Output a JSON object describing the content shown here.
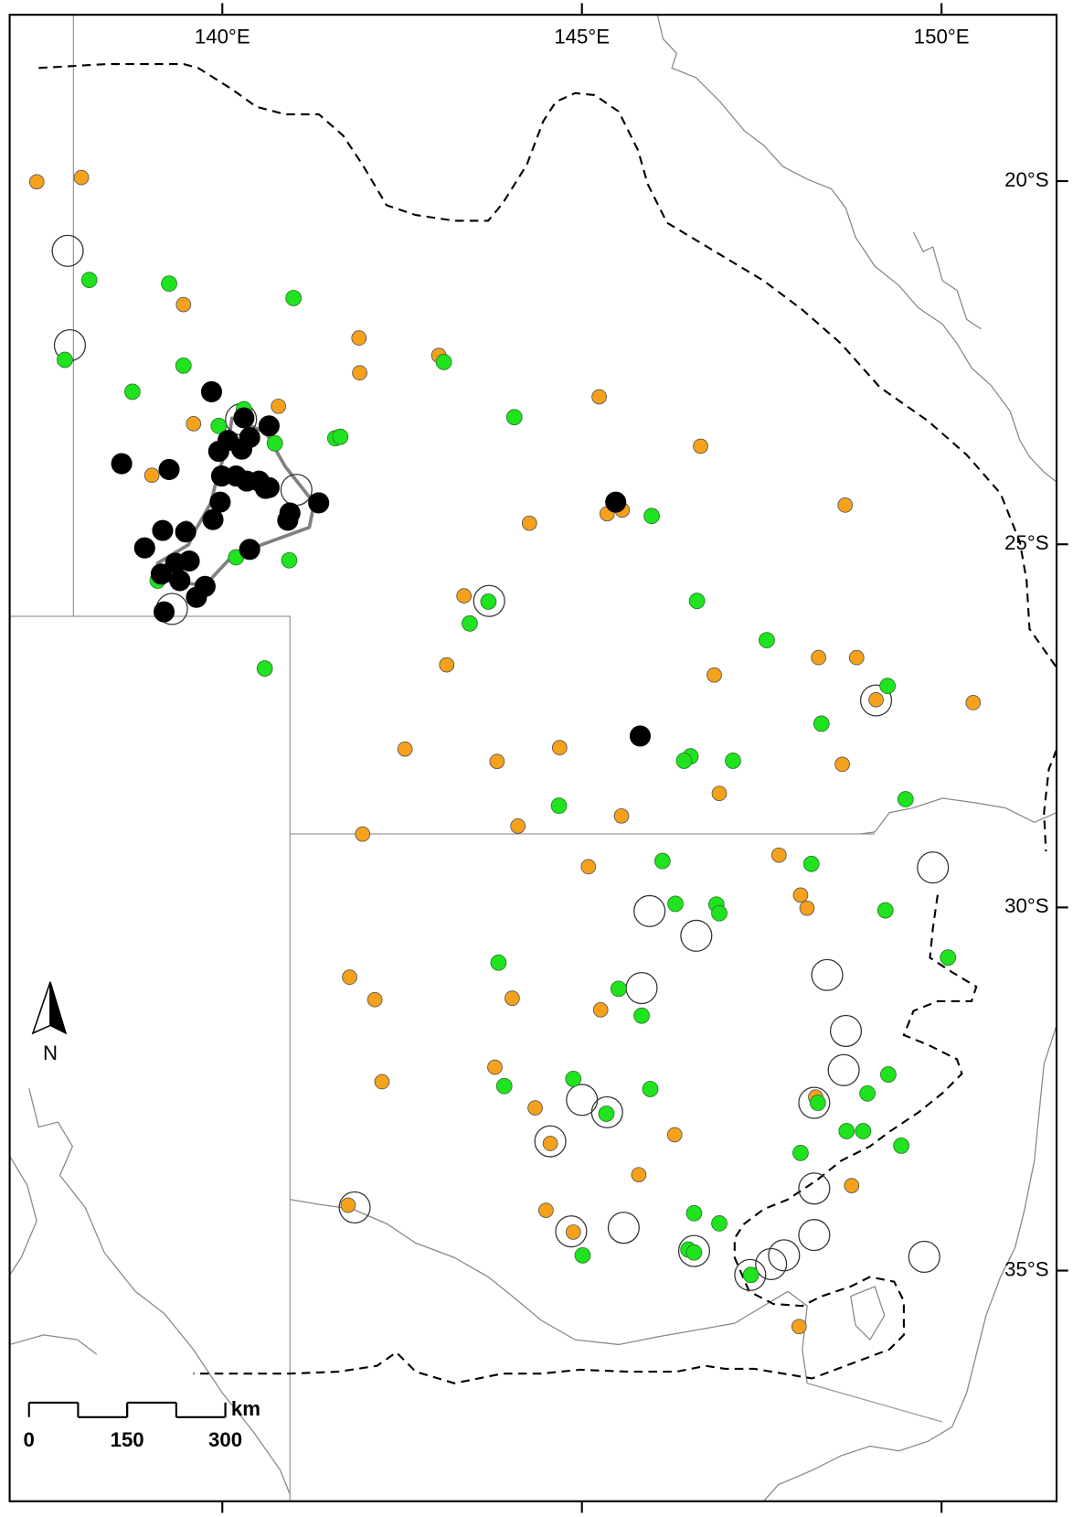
{
  "map": {
    "lon_ticks": [
      {
        "value": 140,
        "label": "140°E"
      },
      {
        "value": 145,
        "label": "145°E"
      },
      {
        "value": 150,
        "label": "150°E"
      }
    ],
    "lat_ticks": [
      {
        "value": 20,
        "label": "20°S"
      },
      {
        "value": 25,
        "label": "25°S"
      },
      {
        "value": 30,
        "label": "30°S"
      },
      {
        "value": 35,
        "label": "35°S"
      }
    ],
    "north_label": "N",
    "scale_bar": {
      "unit": "km",
      "ticks": [
        0,
        150,
        300
      ]
    },
    "points": {
      "orange": {
        "color": "#f5a11c",
        "coords": [
          [
            137.42,
            20.01
          ],
          [
            138.04,
            19.95
          ],
          [
            139.46,
            21.7
          ],
          [
            141.9,
            22.16
          ],
          [
            141.91,
            22.64
          ],
          [
            143.01,
            22.4
          ],
          [
            140.78,
            23.1
          ],
          [
            139.6,
            23.34
          ],
          [
            139.02,
            24.05
          ],
          [
            145.24,
            22.97
          ],
          [
            146.65,
            23.65
          ],
          [
            148.66,
            24.46
          ],
          [
            144.27,
            24.71
          ],
          [
            145.35,
            24.58
          ],
          [
            145.56,
            24.53
          ],
          [
            139.5,
            24.78
          ],
          [
            143.36,
            25.71
          ],
          [
            143.12,
            26.66
          ],
          [
            146.84,
            26.8
          ],
          [
            148.29,
            26.56
          ],
          [
            148.82,
            26.56
          ],
          [
            149.09,
            27.14
          ],
          [
            150.44,
            27.18
          ],
          [
            142.54,
            27.82
          ],
          [
            143.82,
            27.99
          ],
          [
            144.69,
            27.8
          ],
          [
            148.62,
            28.03
          ],
          [
            146.91,
            28.43
          ],
          [
            141.95,
            28.99
          ],
          [
            144.11,
            28.88
          ],
          [
            145.55,
            28.74
          ],
          [
            145.09,
            29.44
          ],
          [
            147.74,
            29.28
          ],
          [
            148.04,
            29.83
          ],
          [
            148.13,
            30.01
          ],
          [
            141.77,
            30.96
          ],
          [
            142.12,
            31.27
          ],
          [
            144.03,
            31.25
          ],
          [
            145.26,
            31.41
          ],
          [
            143.79,
            32.2
          ],
          [
            142.22,
            32.4
          ],
          [
            144.35,
            32.76
          ],
          [
            146.29,
            33.13
          ],
          [
            144.56,
            33.25
          ],
          [
            145.79,
            33.68
          ],
          [
            148.75,
            33.83
          ],
          [
            148.25,
            32.61
          ],
          [
            144.5,
            34.17
          ],
          [
            144.88,
            34.47
          ],
          [
            141.75,
            34.1
          ],
          [
            148.02,
            35.77
          ]
        ]
      },
      "green": {
        "color": "#1fe31f",
        "coords": [
          [
            138.15,
            21.36
          ],
          [
            139.26,
            21.41
          ],
          [
            140.99,
            21.61
          ],
          [
            137.81,
            22.46
          ],
          [
            139.46,
            22.54
          ],
          [
            143.08,
            22.49
          ],
          [
            138.75,
            22.9
          ],
          [
            140.3,
            23.14
          ],
          [
            139.95,
            23.37
          ],
          [
            140.73,
            23.61
          ],
          [
            141.57,
            23.54
          ],
          [
            141.64,
            23.52
          ],
          [
            144.06,
            23.25
          ],
          [
            145.97,
            24.61
          ],
          [
            140.19,
            25.18
          ],
          [
            140.93,
            25.22
          ],
          [
            139.1,
            25.5
          ],
          [
            143.7,
            25.79
          ],
          [
            143.44,
            26.09
          ],
          [
            146.6,
            25.78
          ],
          [
            147.57,
            26.32
          ],
          [
            140.59,
            26.71
          ],
          [
            149.25,
            26.95
          ],
          [
            148.33,
            27.47
          ],
          [
            146.51,
            27.92
          ],
          [
            146.42,
            27.98
          ],
          [
            147.1,
            27.98
          ],
          [
            144.68,
            28.6
          ],
          [
            149.5,
            28.51
          ],
          [
            146.12,
            29.36
          ],
          [
            148.19,
            29.4
          ],
          [
            146.3,
            29.95
          ],
          [
            146.87,
            29.96
          ],
          [
            146.91,
            30.08
          ],
          [
            149.22,
            30.04
          ],
          [
            150.09,
            30.69
          ],
          [
            143.84,
            30.76
          ],
          [
            145.51,
            31.12
          ],
          [
            145.83,
            31.49
          ],
          [
            144.88,
            32.36
          ],
          [
            143.92,
            32.46
          ],
          [
            145.34,
            32.84
          ],
          [
            145.95,
            32.5
          ],
          [
            149.26,
            32.3
          ],
          [
            148.97,
            32.56
          ],
          [
            148.28,
            32.69
          ],
          [
            148.68,
            33.08
          ],
          [
            148.91,
            33.08
          ],
          [
            149.44,
            33.28
          ],
          [
            148.04,
            33.38
          ],
          [
            146.56,
            34.21
          ],
          [
            146.91,
            34.35
          ],
          [
            146.48,
            34.71
          ],
          [
            146.56,
            34.75
          ],
          [
            145.01,
            34.79
          ],
          [
            147.35,
            35.06
          ]
        ]
      },
      "black": {
        "color": "#000000",
        "coords": [
          [
            139.85,
            22.9
          ],
          [
            140.3,
            23.26
          ],
          [
            140.65,
            23.37
          ],
          [
            140.38,
            23.53
          ],
          [
            139.95,
            23.72
          ],
          [
            140.27,
            23.69
          ],
          [
            138.6,
            23.89
          ],
          [
            139.26,
            23.97
          ],
          [
            139.99,
            24.06
          ],
          [
            140.19,
            24.06
          ],
          [
            140.34,
            24.13
          ],
          [
            140.51,
            24.13
          ],
          [
            140.65,
            24.22
          ],
          [
            140.91,
            24.67
          ],
          [
            141.34,
            24.43
          ],
          [
            145.47,
            24.42
          ],
          [
            139.97,
            24.42
          ],
          [
            139.87,
            24.66
          ],
          [
            139.17,
            24.81
          ],
          [
            139.49,
            24.83
          ],
          [
            138.92,
            25.05
          ],
          [
            140.38,
            25.07
          ],
          [
            139.35,
            25.26
          ],
          [
            139.54,
            25.23
          ],
          [
            139.15,
            25.41
          ],
          [
            139.41,
            25.5
          ],
          [
            139.76,
            25.58
          ],
          [
            139.64,
            25.73
          ],
          [
            139.19,
            25.93
          ],
          [
            145.81,
            27.64
          ],
          [
            140.08,
            23.57
          ],
          [
            140.6,
            24.23
          ],
          [
            140.94,
            24.57
          ]
        ]
      },
      "open": {
        "color": "#333333",
        "coords": [
          [
            137.85,
            20.96
          ],
          [
            137.88,
            22.26
          ],
          [
            140.26,
            23.28
          ],
          [
            141.03,
            24.25
          ],
          [
            139.3,
            25.89
          ],
          [
            143.71,
            25.78
          ],
          [
            149.09,
            27.15
          ],
          [
            149.88,
            29.45
          ],
          [
            145.94,
            30.05
          ],
          [
            146.59,
            30.39
          ],
          [
            148.41,
            30.93
          ],
          [
            145.83,
            31.11
          ],
          [
            148.67,
            31.7
          ],
          [
            148.64,
            32.24
          ],
          [
            145.0,
            32.65
          ],
          [
            145.35,
            32.82
          ],
          [
            148.23,
            32.69
          ],
          [
            144.56,
            33.22
          ],
          [
            148.23,
            33.87
          ],
          [
            145.58,
            34.41
          ],
          [
            144.85,
            34.46
          ],
          [
            148.23,
            34.51
          ],
          [
            141.84,
            34.13
          ],
          [
            146.56,
            34.73
          ],
          [
            147.34,
            35.06
          ],
          [
            147.63,
            34.91
          ],
          [
            147.81,
            34.79
          ],
          [
            149.76,
            34.81
          ]
        ]
      }
    }
  }
}
